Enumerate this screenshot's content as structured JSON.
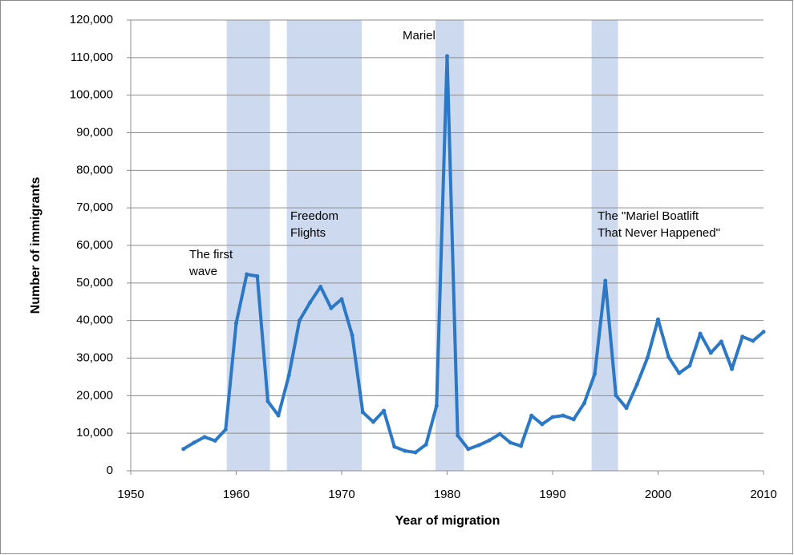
{
  "chart_data": {
    "type": "line",
    "x_label": "Year of migration",
    "y_label": "Number of immigrants",
    "x": [
      1955,
      1956,
      1957,
      1958,
      1959,
      1960,
      1961,
      1962,
      1963,
      1964,
      1965,
      1966,
      1967,
      1968,
      1969,
      1970,
      1971,
      1972,
      1973,
      1974,
      1975,
      1976,
      1977,
      1978,
      1979,
      1980,
      1981,
      1982,
      1983,
      1984,
      1985,
      1986,
      1987,
      1988,
      1989,
      1990,
      1991,
      1992,
      1993,
      1994,
      1995,
      1996,
      1997,
      1998,
      1999,
      2000,
      2001,
      2002,
      2003,
      2004,
      2005,
      2006,
      2007,
      2008,
      2009,
      2010
    ],
    "series": [
      {
        "color": "#2a78c6",
        "values": [
          5800,
          7500,
          9000,
          8000,
          11000,
          39300,
          52300,
          51800,
          18500,
          14700,
          25400,
          40000,
          44800,
          49000,
          43300,
          45700,
          36100,
          15600,
          13000,
          16000,
          6400,
          5300,
          4900,
          7000,
          17300,
          110400,
          9400,
          5800,
          6800,
          8100,
          9800,
          7500,
          6600,
          14700,
          12400,
          14300,
          14700,
          13700,
          18000,
          25800,
          50600,
          20100,
          16700,
          23000,
          30100,
          40300,
          30300,
          26000,
          28000,
          36500,
          31400,
          34400,
          27100,
          35700,
          34600,
          37000
        ]
      }
    ],
    "bands": [
      {
        "start": 1959.1,
        "end": 1963.2,
        "label": [
          "The first",
          "wave"
        ]
      },
      {
        "start": 1964.8,
        "end": 1971.9,
        "label": [
          "Freedom",
          "Flights"
        ]
      },
      {
        "start": 1978.9,
        "end": 1981.6,
        "label": [
          "Mariel"
        ]
      },
      {
        "start": 1993.7,
        "end": 1996.2,
        "label": [
          "The \"Mariel Boatlift",
          "That Never Happened\""
        ]
      }
    ],
    "band_color": "#ccd9ef",
    "xlim": [
      1950,
      2010
    ],
    "xticks": [
      1950,
      1960,
      1970,
      1980,
      1990,
      2000,
      2010
    ],
    "ylim": [
      0,
      120000
    ],
    "yticks": [
      0,
      {
        "value": 10000,
        "label": "10,000"
      },
      {
        "value": 20000,
        "label": "20,000"
      },
      {
        "value": 30000,
        "label": "30,000"
      },
      {
        "value": 40000,
        "label": "40,000"
      },
      {
        "value": 50000,
        "label": "50,000"
      },
      {
        "value": 60000,
        "label": "60,000"
      },
      {
        "value": 70000,
        "label": "70,000"
      },
      {
        "value": 80000,
        "label": "80,000"
      },
      {
        "value": 90000,
        "label": "90,000"
      },
      {
        "value": 100000,
        "label": "100,000"
      },
      {
        "value": 110000,
        "label": "110,000"
      },
      {
        "value": 120000,
        "label": "120,000"
      }
    ],
    "grid": true
  }
}
